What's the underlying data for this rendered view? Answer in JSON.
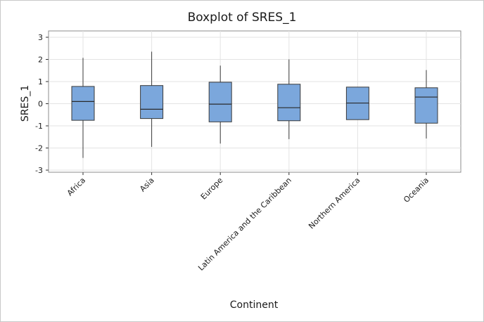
{
  "chart_data": {
    "type": "boxplot",
    "title": "Boxplot of SRES_1",
    "xlabel": "Continent",
    "ylabel": "SRES_1",
    "ylim": [
      -3,
      3
    ],
    "yticks": [
      3,
      2,
      1,
      0,
      -1,
      -2,
      -3
    ],
    "grid": true,
    "box_color": "#7ba7dc",
    "box_stroke": "#3a3a3a",
    "categories": [
      "Africa",
      "Asia",
      "Europe",
      "Latin America and the Caribbean",
      "Northern America",
      "Oceania"
    ],
    "boxes": [
      {
        "category": "Africa",
        "whisker_low": -2.45,
        "q1": -0.75,
        "median": 0.1,
        "q3": 0.78,
        "whisker_high": 2.07
      },
      {
        "category": "Asia",
        "whisker_low": -1.95,
        "q1": -0.67,
        "median": -0.25,
        "q3": 0.82,
        "whisker_high": 2.35
      },
      {
        "category": "Europe",
        "whisker_low": -1.8,
        "q1": -0.82,
        "median": -0.02,
        "q3": 0.97,
        "whisker_high": 1.72
      },
      {
        "category": "Latin America and the Caribbean",
        "whisker_low": -1.6,
        "q1": -0.77,
        "median": -0.18,
        "q3": 0.88,
        "whisker_high": 2.0
      },
      {
        "category": "Northern America",
        "whisker_low": -0.72,
        "q1": -0.72,
        "median": 0.03,
        "q3": 0.75,
        "whisker_high": 0.75
      },
      {
        "category": "Oceania",
        "whisker_low": -1.57,
        "q1": -0.88,
        "median": 0.3,
        "q3": 0.72,
        "whisker_high": 1.52
      }
    ]
  }
}
